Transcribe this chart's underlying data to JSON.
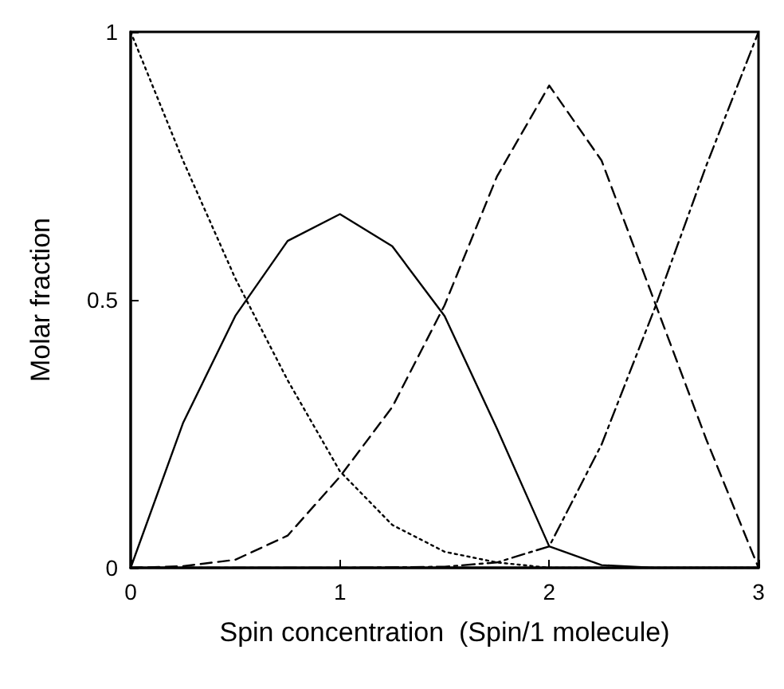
{
  "chart_data": {
    "type": "line",
    "xlabel": "Spin concentration  (Spin/1 molecule)",
    "ylabel": "Molar fraction",
    "xlim": [
      0,
      3
    ],
    "xticks": [
      0,
      1,
      2,
      3
    ],
    "ylim": [
      0,
      1
    ],
    "yticks": [
      0,
      0.5,
      1
    ],
    "grid": false,
    "marker": "none",
    "series": [
      {
        "color": "#000000",
        "line_style": "dotted",
        "x": [
          0,
          0.25,
          0.5,
          0.75,
          1,
          1.25,
          1.5,
          1.75,
          2,
          2.5,
          3
        ],
        "values": [
          1,
          0.76,
          0.54,
          0.35,
          0.18,
          0.08,
          0.03,
          0.01,
          0,
          0,
          0
        ]
      },
      {
        "color": "#000000",
        "line_style": "solid",
        "x": [
          0,
          0.25,
          0.5,
          0.75,
          1,
          1.25,
          1.5,
          1.75,
          2,
          2.25,
          2.5,
          3
        ],
        "values": [
          0,
          0.27,
          0.47,
          0.61,
          0.66,
          0.6,
          0.47,
          0.26,
          0.04,
          0.005,
          0,
          0
        ]
      },
      {
        "color": "#000000",
        "line_style": "dashed",
        "x": [
          0,
          0.25,
          0.5,
          0.75,
          1,
          1.25,
          1.5,
          1.75,
          2,
          2.25,
          2.5,
          2.75,
          3
        ],
        "values": [
          0,
          0.003,
          0.015,
          0.06,
          0.17,
          0.3,
          0.49,
          0.73,
          0.9,
          0.76,
          0.5,
          0.24,
          0
        ]
      },
      {
        "color": "#000000",
        "line_style": "dashdot",
        "x": [
          0,
          1,
          1.5,
          1.75,
          2,
          2.25,
          2.5,
          2.75,
          3
        ],
        "values": [
          0,
          0,
          0.002,
          0.01,
          0.04,
          0.23,
          0.48,
          0.75,
          1
        ]
      }
    ]
  }
}
